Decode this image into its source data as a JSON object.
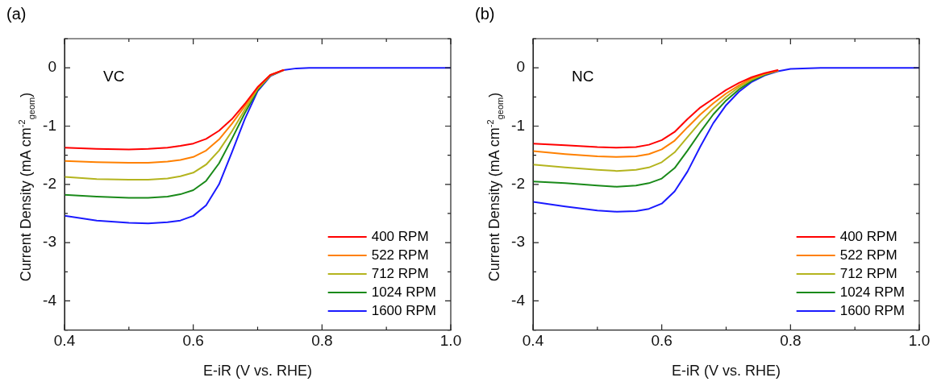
{
  "chart_data": [
    {
      "type": "line",
      "title": "(a)",
      "xlabel": "E-iR (V vs. RHE)",
      "ylabel": "Current Density (mA cm$^{-2}$$_{geom}$)",
      "annotations": [
        "VC"
      ],
      "legend": "bottom right",
      "grid": false,
      "marker": "none",
      "line_style": "solid",
      "x": [
        0.4,
        0.45,
        0.5,
        0.53,
        0.56,
        0.58,
        0.6,
        0.62,
        0.64,
        0.66,
        0.68,
        0.7,
        0.72,
        0.74,
        0.76,
        0.78,
        0.8,
        0.85,
        0.9,
        1.0
      ],
      "xlim": [
        0.4,
        1.0
      ],
      "xticks": [
        0.4,
        {
          "value": 0.5,
          "label": null
        },
        0.6,
        {
          "value": 0.7,
          "label": null
        },
        0.8,
        {
          "value": 0.9,
          "label": null
        },
        {
          "value": 1.0,
          "label": "1.0"
        }
      ],
      "ylim": [
        -4.5,
        0.5
      ],
      "yticks": [
        {
          "value": -4.5,
          "label": null
        },
        -4,
        {
          "value": -3.5,
          "label": null
        },
        -3,
        {
          "value": -2.5,
          "label": null
        },
        -2,
        {
          "value": -1.5,
          "label": null
        },
        -1,
        {
          "value": -0.5,
          "label": null
        },
        0,
        {
          "value": 0.5,
          "label": null
        }
      ],
      "series": [
        {
          "name": "400 RPM",
          "color": "#ff0000",
          "values": [
            -1.37,
            -1.39,
            -1.4,
            -1.39,
            -1.37,
            -1.34,
            -1.3,
            -1.22,
            -1.08,
            -0.88,
            -0.62,
            -0.33,
            -0.12,
            -0.04,
            null,
            null,
            null,
            null,
            null,
            null
          ]
        },
        {
          "name": "522 RPM",
          "color": "#ff8000",
          "values": [
            -1.6,
            -1.62,
            -1.63,
            -1.63,
            -1.61,
            -1.58,
            -1.53,
            -1.42,
            -1.23,
            -0.96,
            -0.66,
            -0.34,
            -0.12,
            -0.04,
            null,
            null,
            null,
            null,
            null,
            null
          ]
        },
        {
          "name": "712 RPM",
          "color": "#b4b41e",
          "values": [
            -1.87,
            -1.91,
            -1.92,
            -1.92,
            -1.9,
            -1.86,
            -1.8,
            -1.66,
            -1.42,
            -1.09,
            -0.72,
            -0.36,
            -0.13,
            -0.04,
            null,
            null,
            null,
            null,
            null,
            null
          ]
        },
        {
          "name": "1024 RPM",
          "color": "#1a8a1a",
          "values": [
            -2.18,
            -2.21,
            -2.23,
            -2.23,
            -2.21,
            -2.17,
            -2.1,
            -1.94,
            -1.64,
            -1.22,
            -0.78,
            -0.38,
            -0.13,
            -0.04,
            null,
            null,
            null,
            null,
            null,
            null
          ]
        },
        {
          "name": "1600 RPM",
          "color": "#1a1aff",
          "values": [
            -2.54,
            -2.62,
            -2.66,
            -2.67,
            -2.65,
            -2.62,
            -2.54,
            -2.36,
            -2.0,
            -1.45,
            -0.88,
            -0.4,
            -0.14,
            -0.04,
            -0.01,
            0,
            0,
            0,
            0,
            0
          ]
        }
      ]
    },
    {
      "type": "line",
      "title": "(b)",
      "xlabel": "E-iR (V vs. RHE)",
      "ylabel": "Current Density (mA cm$^{-2}$$_{geom}$)",
      "annotations": [
        "NC"
      ],
      "legend": "bottom right",
      "grid": false,
      "marker": "none",
      "line_style": "solid",
      "x": [
        0.4,
        0.45,
        0.5,
        0.53,
        0.56,
        0.58,
        0.6,
        0.62,
        0.64,
        0.66,
        0.68,
        0.7,
        0.72,
        0.74,
        0.76,
        0.78,
        0.8,
        0.85,
        0.9,
        1.0
      ],
      "xlim": [
        0.4,
        1.0
      ],
      "xticks": [
        0.4,
        {
          "value": 0.5,
          "label": null
        },
        0.6,
        {
          "value": 0.7,
          "label": null
        },
        0.8,
        {
          "value": 0.9,
          "label": null
        },
        {
          "value": 1.0,
          "label": "1.0"
        }
      ],
      "ylim": [
        -4.5,
        0.5
      ],
      "yticks": [
        {
          "value": -4.5,
          "label": null
        },
        -4,
        {
          "value": -3.5,
          "label": null
        },
        -3,
        {
          "value": -2.5,
          "label": null
        },
        -2,
        {
          "value": -1.5,
          "label": null
        },
        -1,
        {
          "value": -0.5,
          "label": null
        },
        0,
        {
          "value": 0.5,
          "label": null
        }
      ],
      "series": [
        {
          "name": "400 RPM",
          "color": "#ff0000",
          "values": [
            -1.3,
            -1.33,
            -1.36,
            -1.37,
            -1.36,
            -1.32,
            -1.24,
            -1.1,
            -0.88,
            -0.68,
            -0.53,
            -0.38,
            -0.26,
            -0.16,
            -0.09,
            -0.04,
            null,
            null,
            null,
            null
          ]
        },
        {
          "name": "522 RPM",
          "color": "#ff8000",
          "values": [
            -1.43,
            -1.48,
            -1.52,
            -1.53,
            -1.52,
            -1.48,
            -1.4,
            -1.25,
            -1.02,
            -0.8,
            -0.61,
            -0.44,
            -0.3,
            -0.18,
            -0.1,
            -0.05,
            null,
            null,
            null,
            null
          ]
        },
        {
          "name": "712 RPM",
          "color": "#b4b41e",
          "values": [
            -1.66,
            -1.71,
            -1.75,
            -1.77,
            -1.75,
            -1.71,
            -1.62,
            -1.45,
            -1.19,
            -0.93,
            -0.7,
            -0.5,
            -0.33,
            -0.2,
            -0.11,
            -0.05,
            null,
            null,
            null,
            null
          ]
        },
        {
          "name": "1024 RPM",
          "color": "#1a8a1a",
          "values": [
            -1.95,
            -1.98,
            -2.02,
            -2.04,
            -2.02,
            -1.98,
            -1.9,
            -1.72,
            -1.42,
            -1.1,
            -0.8,
            -0.56,
            -0.37,
            -0.22,
            -0.12,
            -0.05,
            null,
            null,
            null,
            null
          ]
        },
        {
          "name": "1600 RPM",
          "color": "#1a1aff",
          "values": [
            -2.3,
            -2.38,
            -2.45,
            -2.47,
            -2.46,
            -2.42,
            -2.33,
            -2.12,
            -1.78,
            -1.35,
            -0.95,
            -0.64,
            -0.41,
            -0.24,
            -0.13,
            -0.06,
            -0.02,
            0,
            0,
            0
          ]
        }
      ]
    }
  ]
}
